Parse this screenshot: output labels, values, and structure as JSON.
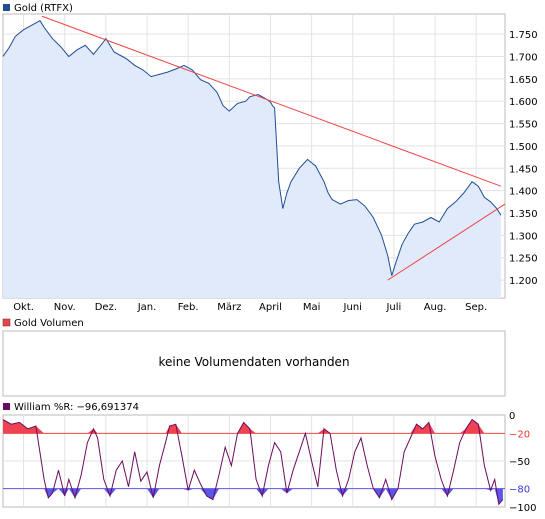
{
  "chart_data": [
    {
      "type": "area",
      "legend": "Gold (RTFX)",
      "color": "#1f4e96",
      "fill": "#e0eafa",
      "x_ticks": [
        "Okt.",
        "Nov.",
        "Dez.",
        "Jan.",
        "Feb.",
        "März",
        "April",
        "Mai",
        "Juni",
        "Juli",
        "Aug.",
        "Sep."
      ],
      "y_ticks": [
        "1.750",
        "1.700",
        "1.650",
        "1.600",
        "1.550",
        "1.500",
        "1.450",
        "1.400",
        "1.350",
        "1.300",
        "1.250",
        "1.200"
      ],
      "ylim": [
        1160,
        1795
      ],
      "months_x": [
        0.5,
        1.5,
        2.5,
        3.5,
        4.5,
        5.5,
        6.5,
        7.5,
        8.5,
        9.5,
        10.5,
        11.5
      ],
      "series": [
        {
          "x": [
            0,
            0.15,
            0.3,
            0.5,
            0.7,
            0.9,
            1.0,
            1.2,
            1.4,
            1.6,
            1.8,
            2.0,
            2.2,
            2.4,
            2.5,
            2.7,
            2.9,
            3.0,
            3.2,
            3.4,
            3.6,
            3.8,
            4.0,
            4.2,
            4.4,
            4.6,
            4.8,
            5.0,
            5.2,
            5.35,
            5.5,
            5.7,
            5.9,
            6.0,
            6.2,
            6.4,
            6.5,
            6.55,
            6.6,
            6.7,
            6.8,
            6.9,
            7.0,
            7.2,
            7.4,
            7.6,
            7.8,
            7.9,
            8.0,
            8.2,
            8.4,
            8.6,
            8.8,
            9.0,
            9.2,
            9.35,
            9.45,
            9.55,
            9.7,
            9.85,
            10.0,
            10.2,
            10.4,
            10.6,
            10.8,
            11.0,
            11.2,
            11.4,
            11.55,
            11.7,
            11.85,
            12.0,
            12.1
          ],
          "values": [
            1700,
            1720,
            1745,
            1760,
            1770,
            1780,
            1765,
            1740,
            1722,
            1700,
            1715,
            1725,
            1705,
            1728,
            1740,
            1710,
            1700,
            1695,
            1680,
            1670,
            1655,
            1660,
            1665,
            1672,
            1680,
            1670,
            1648,
            1640,
            1620,
            1590,
            1578,
            1595,
            1600,
            1610,
            1615,
            1605,
            1598,
            1590,
            1585,
            1420,
            1360,
            1395,
            1420,
            1450,
            1470,
            1455,
            1420,
            1395,
            1380,
            1370,
            1378,
            1380,
            1365,
            1340,
            1300,
            1255,
            1210,
            1240,
            1280,
            1305,
            1325,
            1330,
            1340,
            1330,
            1360,
            1375,
            1395,
            1420,
            1410,
            1385,
            1375,
            1360,
            1345
          ]
        }
      ],
      "trendlines": [
        {
          "x": [
            0.95,
            12.1
          ],
          "values": [
            1790,
            1410
          ]
        },
        {
          "x": [
            9.35,
            12.3
          ],
          "values": [
            1200,
            1370
          ]
        }
      ]
    },
    {
      "type": "bar",
      "legend": "Gold Volumen",
      "color": "#e24a4a",
      "message": "keine Volumendaten vorhanden"
    },
    {
      "type": "line",
      "legend": "William %R: −96,691374",
      "color": "#6a0c5e",
      "upper_fill": "#ef4352",
      "lower_fill": "#5a56e8",
      "y_ticks": [
        "0",
        "−20",
        "−50",
        "−80",
        "−100"
      ],
      "ylim": [
        -100,
        0
      ],
      "levels": [
        -20,
        -80
      ],
      "series": [
        {
          "x": [
            0,
            0.2,
            0.4,
            0.6,
            0.8,
            1.0,
            1.1,
            1.2,
            1.35,
            1.5,
            1.6,
            1.75,
            1.9,
            2.05,
            2.2,
            2.3,
            2.45,
            2.6,
            2.75,
            2.9,
            3.05,
            3.2,
            3.35,
            3.5,
            3.65,
            3.8,
            3.95,
            4.05,
            4.2,
            4.35,
            4.5,
            4.65,
            4.8,
            4.95,
            5.1,
            5.25,
            5.4,
            5.55,
            5.7,
            5.85,
            6.0,
            6.15,
            6.3,
            6.45,
            6.6,
            6.75,
            6.9,
            7.05,
            7.2,
            7.35,
            7.5,
            7.65,
            7.8,
            7.95,
            8.1,
            8.25,
            8.4,
            8.55,
            8.7,
            8.85,
            9.0,
            9.15,
            9.3,
            9.45,
            9.6,
            9.75,
            9.9,
            10.05,
            10.2,
            10.35,
            10.5,
            10.65,
            10.8,
            10.95,
            11.1,
            11.25,
            11.4,
            11.55,
            11.7,
            11.85,
            11.95,
            12.05,
            12.15
          ],
          "values": [
            -5,
            -10,
            -8,
            -15,
            -12,
            -70,
            -90,
            -85,
            -60,
            -88,
            -70,
            -90,
            -65,
            -30,
            -15,
            -25,
            -70,
            -88,
            -60,
            -50,
            -78,
            -40,
            -72,
            -62,
            -90,
            -55,
            -30,
            -12,
            -10,
            -45,
            -82,
            -60,
            -75,
            -88,
            -92,
            -65,
            -35,
            -55,
            -20,
            -8,
            -15,
            -70,
            -88,
            -55,
            -30,
            -40,
            -85,
            -60,
            -40,
            -20,
            -50,
            -78,
            -15,
            -20,
            -60,
            -88,
            -70,
            -40,
            -25,
            -55,
            -80,
            -90,
            -70,
            -92,
            -80,
            -40,
            -25,
            -10,
            -15,
            -8,
            -45,
            -70,
            -88,
            -60,
            -30,
            -15,
            -5,
            -10,
            -55,
            -82,
            -70,
            -97,
            -92
          ]
        }
      ]
    }
  ]
}
